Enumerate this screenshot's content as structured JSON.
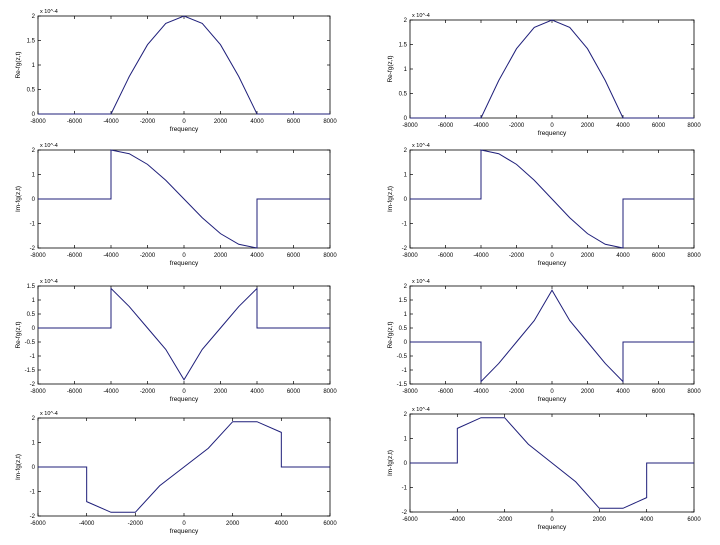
{
  "chart_data": [
    {
      "id": "re1",
      "type": "line",
      "xlabel": "frequency",
      "ylabel": "Re-fg(z,t)",
      "exponent_label": "x 10^-4",
      "xlim": [
        -8000,
        8000
      ],
      "ylim": [
        0,
        2
      ],
      "xticks": [
        -8000,
        -6000,
        -4000,
        -2000,
        0,
        2000,
        4000,
        6000,
        8000
      ],
      "xtick_labels": [
        "-8000",
        "-6000",
        "-4000",
        "-2000",
        "0",
        "2000",
        "4000",
        "6000",
        "8000"
      ],
      "yticks": [
        0,
        0.5,
        1,
        1.5,
        2
      ],
      "ytick_labels": [
        "0",
        "0.5",
        "1",
        "1.5",
        "2"
      ],
      "grid": false,
      "series": [
        {
          "x": [
            -8000,
            -4000,
            -3000,
            -2000,
            -1000,
            0,
            1000,
            2000,
            3000,
            4000,
            8000
          ],
          "y": [
            0,
            0,
            0.765,
            1.414,
            1.848,
            2,
            1.848,
            1.414,
            0.765,
            0,
            0
          ]
        }
      ]
    },
    {
      "id": "re2",
      "type": "line",
      "xlabel": "frequency",
      "ylabel": "Re-fg(z,t)",
      "exponent_label": "x 10^-4",
      "xlim": [
        -8000,
        8000
      ],
      "ylim": [
        0,
        2
      ],
      "xticks": [
        -8000,
        -6000,
        -4000,
        -2000,
        0,
        2000,
        4000,
        6000,
        8000
      ],
      "xtick_labels": [
        "-8000",
        "-6000",
        "-4000",
        "-2000",
        "0",
        "2000",
        "4000",
        "6000",
        "8000"
      ],
      "yticks": [
        0,
        0.5,
        1,
        1.5,
        2
      ],
      "ytick_labels": [
        "0",
        "0.5",
        "1",
        "1.5",
        "2"
      ],
      "grid": false,
      "series": [
        {
          "x": [
            -8000,
            -4000,
            -3000,
            -2000,
            -1000,
            0,
            1000,
            2000,
            3000,
            4000,
            8000
          ],
          "y": [
            0,
            0,
            0.765,
            1.414,
            1.848,
            2,
            1.848,
            1.414,
            0.765,
            0,
            0
          ]
        }
      ]
    },
    {
      "id": "im1",
      "type": "line",
      "xlabel": "frequency",
      "ylabel": "Im-fg(z,t)",
      "exponent_label": "x 10^-4",
      "xlim": [
        -8000,
        8000
      ],
      "ylim": [
        -2,
        2
      ],
      "xticks": [
        -8000,
        -6000,
        -4000,
        -2000,
        0,
        2000,
        4000,
        6000,
        8000
      ],
      "xtick_labels": [
        "-8000",
        "-6000",
        "-4000",
        "-2000",
        "0",
        "2000",
        "4000",
        "6000",
        "8000"
      ],
      "yticks": [
        -2,
        -1,
        0,
        1,
        2
      ],
      "ytick_labels": [
        "-2",
        "-1",
        "0",
        "1",
        "2"
      ],
      "grid": false,
      "series": [
        {
          "x": [
            -8000,
            -4000,
            -4000,
            -3000,
            -2000,
            -1000,
            0,
            1000,
            2000,
            3000,
            4000,
            4000,
            8000
          ],
          "y": [
            0,
            0,
            2,
            1.848,
            1.414,
            0.765,
            0,
            -0.765,
            -1.414,
            -1.848,
            -2,
            0,
            0
          ]
        }
      ]
    },
    {
      "id": "im2",
      "type": "line",
      "xlabel": "frequency",
      "ylabel": "Im-fg(z,t)",
      "exponent_label": "x 10^-4",
      "xlim": [
        -8000,
        8000
      ],
      "ylim": [
        -2,
        2
      ],
      "xticks": [
        -8000,
        -6000,
        -4000,
        -2000,
        0,
        2000,
        4000,
        6000,
        8000
      ],
      "xtick_labels": [
        "-8000",
        "-6000",
        "-4000",
        "-2000",
        "0",
        "2000",
        "4000",
        "6000",
        "8000"
      ],
      "yticks": [
        -2,
        -1,
        0,
        1,
        2
      ],
      "ytick_labels": [
        "-2",
        "-1",
        "0",
        "1",
        "2"
      ],
      "grid": false,
      "series": [
        {
          "x": [
            -8000,
            -4000,
            -4000,
            -3000,
            -2000,
            -1000,
            0,
            1000,
            2000,
            3000,
            4000,
            4000,
            8000
          ],
          "y": [
            0,
            0,
            2,
            1.848,
            1.414,
            0.765,
            0,
            -0.765,
            -1.414,
            -1.848,
            -2,
            0,
            0
          ]
        }
      ]
    },
    {
      "id": "re3",
      "type": "line",
      "xlabel": "frequency",
      "ylabel": "Re-fg(z,t)",
      "exponent_label": "x 10^-4",
      "xlim": [
        -8000,
        8000
      ],
      "ylim": [
        -2,
        1.5
      ],
      "xticks": [
        -8000,
        -6000,
        -4000,
        -2000,
        0,
        2000,
        4000,
        6000,
        8000
      ],
      "xtick_labels": [
        "-8000",
        "-6000",
        "-4000",
        "-2000",
        "0",
        "2000",
        "4000",
        "6000",
        "8000"
      ],
      "yticks": [
        -2,
        -1.5,
        -1,
        -0.5,
        0,
        0.5,
        1,
        1.5
      ],
      "ytick_labels": [
        "-2",
        "-1.5",
        "-1",
        "-0.5",
        "0",
        "0.5",
        "1",
        "1.5"
      ],
      "grid": false,
      "series": [
        {
          "x": [
            -8000,
            -4000,
            -4000,
            -3000,
            -2000,
            -1000,
            0,
            1000,
            2000,
            3000,
            4000,
            4000,
            8000
          ],
          "y": [
            0,
            0,
            1.414,
            0.765,
            0,
            -0.765,
            -1.848,
            -0.765,
            0,
            0.765,
            1.414,
            0,
            0
          ]
        }
      ]
    },
    {
      "id": "re4",
      "type": "line",
      "xlabel": "frequency",
      "ylabel": "Re-fg(z,t)",
      "exponent_label": "x 10^-4",
      "xlim": [
        -8000,
        8000
      ],
      "ylim": [
        -1.5,
        2
      ],
      "xticks": [
        -8000,
        -6000,
        -4000,
        -2000,
        0,
        2000,
        4000,
        6000,
        8000
      ],
      "xtick_labels": [
        "-8000",
        "-6000",
        "-4000",
        "-2000",
        "0",
        "2000",
        "4000",
        "6000",
        "8000"
      ],
      "yticks": [
        -1.5,
        -1,
        -0.5,
        0,
        0.5,
        1,
        1.5,
        2
      ],
      "ytick_labels": [
        "-1.5",
        "-1",
        "-0.5",
        "0",
        "0.5",
        "1",
        "1.5",
        "2"
      ],
      "grid": false,
      "series": [
        {
          "x": [
            -8000,
            -4000,
            -4000,
            -3000,
            -2000,
            -1000,
            0,
            1000,
            2000,
            3000,
            4000,
            4000,
            8000
          ],
          "y": [
            0,
            0,
            -1.414,
            -0.765,
            0,
            0.765,
            1.848,
            0.765,
            0,
            -0.765,
            -1.414,
            0,
            0
          ]
        }
      ]
    },
    {
      "id": "im3",
      "type": "line",
      "xlabel": "frequency",
      "ylabel": "Im-fg(z,t)",
      "exponent_label": "x 10^-4",
      "xlim": [
        -6000,
        6000
      ],
      "ylim": [
        -2,
        2
      ],
      "xticks": [
        -6000,
        -4000,
        -2000,
        0,
        2000,
        4000,
        6000
      ],
      "xtick_labels": [
        "-6000",
        "-4000",
        "-2000",
        "0",
        "2000",
        "4000",
        "6000"
      ],
      "yticks": [
        -2,
        -1,
        0,
        1,
        2
      ],
      "ytick_labels": [
        "-2",
        "-1",
        "0",
        "1",
        "2"
      ],
      "grid": false,
      "series": [
        {
          "x": [
            -6000,
            -4000,
            -4000,
            -3000,
            -2000,
            -1000,
            0,
            1000,
            2000,
            3000,
            4000,
            4000,
            6000
          ],
          "y": [
            0,
            0,
            -1.414,
            -1.848,
            -1.848,
            -0.765,
            0,
            0.765,
            1.848,
            1.848,
            1.414,
            0,
            0
          ]
        }
      ]
    },
    {
      "id": "im4",
      "type": "line",
      "xlabel": "frequency",
      "ylabel": "Im-fg(z,t)",
      "exponent_label": "x 10^-4",
      "xlim": [
        -6000,
        6000
      ],
      "ylim": [
        -2,
        2
      ],
      "xticks": [
        -6000,
        -4000,
        -2000,
        0,
        2000,
        4000,
        6000
      ],
      "xtick_labels": [
        "-6000",
        "-4000",
        "-2000",
        "0",
        "2000",
        "4000",
        "6000"
      ],
      "yticks": [
        -2,
        -1,
        0,
        1,
        2
      ],
      "ytick_labels": [
        "-2",
        "-1",
        "0",
        "1",
        "2"
      ],
      "grid": false,
      "series": [
        {
          "x": [
            -6000,
            -4000,
            -4000,
            -3000,
            -2000,
            -1000,
            0,
            1000,
            2000,
            3000,
            4000,
            4000,
            6000
          ],
          "y": [
            0,
            0,
            1.414,
            1.848,
            1.848,
            0.765,
            0,
            -0.765,
            -1.848,
            -1.848,
            -1.414,
            0,
            0
          ]
        }
      ]
    }
  ],
  "colors": {
    "line": "#1f1f7a",
    "axis": "#000000",
    "background": "#ffffff"
  }
}
